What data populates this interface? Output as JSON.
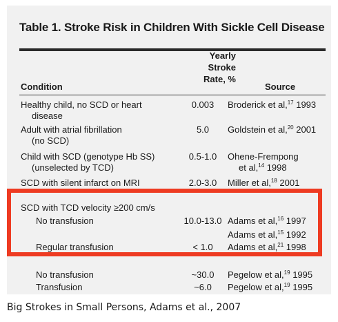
{
  "table": {
    "title": "Table 1. Stroke Risk in Children With Sickle Cell Disease",
    "headers": {
      "condition": "Condition",
      "rate_line1": "Yearly",
      "rate_line2": "Stroke",
      "rate_line3": "Rate, %",
      "source": "Source"
    },
    "rows": [
      {
        "condition": "Healthy child, no SCD or heart",
        "condition_cont": "disease",
        "rate": "0.003",
        "source": "Broderick et al,",
        "ref": "17",
        "year": " 1993"
      },
      {
        "condition": "Adult with atrial fibrillation",
        "condition_cont": "(no SCD)",
        "rate": "5.0",
        "source": "Goldstein et al,",
        "ref": "20",
        "year": " 2001"
      },
      {
        "condition": "Child with SCD (genotype Hb SS)",
        "condition_cont": "(unselected by TCD)",
        "rate": "0.5-1.0",
        "source": "Ohene-Frempong",
        "source_cont": "et al,",
        "ref": "14",
        "year": " 1998"
      },
      {
        "condition": "SCD with silent infarct on MRI",
        "rate": "2.0-3.0",
        "source": "Miller et al,",
        "ref": "18",
        "year": " 2001"
      },
      {
        "condition": "SCD with TCD velocity ≥200 cm/s"
      },
      {
        "condition": "No transfusion",
        "rate": "10.0-13.0",
        "source": "Adams et al,",
        "ref": "16",
        "year": " 1997",
        "source2": "Adams et al,",
        "ref2": "15",
        "year2": " 1992"
      },
      {
        "condition": "Regular transfusion",
        "rate": "< 1.0",
        "source": "Adams et al,",
        "ref": "21",
        "year": " 1998"
      },
      {
        "condition": "No transfusion",
        "rate": "~30.0",
        "source": "Pegelow et al,",
        "ref": "19",
        "year": " 1995"
      },
      {
        "condition": "Transfusion",
        "rate": "~6.0",
        "source": "Pegelow et al,",
        "ref": "19",
        "year": " 1995"
      }
    ]
  },
  "highlight_color": "#ee3b22",
  "caption": "Big Strokes in Small Persons, Adams et al., 2007"
}
